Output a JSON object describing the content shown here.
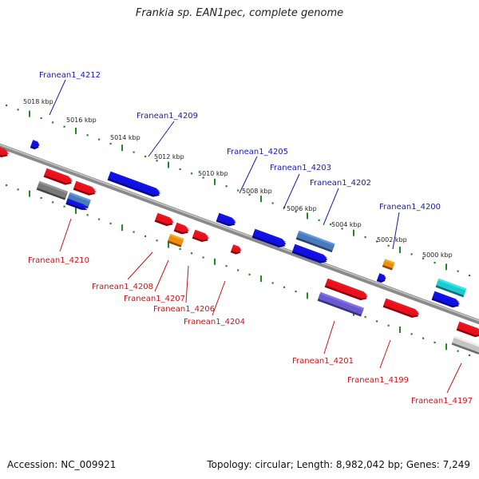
{
  "title": "Frankia sp. EAN1pec, complete genome",
  "footer": {
    "accession": "Accession: NC_009921",
    "topology": "Topology: circular; Length: 8,982,042 bp; Genes: 7,249"
  },
  "ruler": [
    "5018 kbp",
    "5016 kbp",
    "5014 kbp",
    "5012 kbp",
    "5010 kbp",
    "5008 kbp",
    "5006 kbp",
    "5004 kbp",
    "5002 kbp",
    "5000 kbp"
  ],
  "gene_labels_forward": [
    "Franean1_4212",
    "Franean1_4209",
    "Franean1_4205",
    "Franean1_4203",
    "Franean1_4202",
    "Franean1_4200"
  ],
  "gene_labels_reverse": [
    "Franean1_4210",
    "Franean1_4208",
    "Franean1_4207",
    "Franean1_4206",
    "Franean1_4204",
    "Franean1_4201",
    "Franean1_4199",
    "Franean1_4197"
  ],
  "colors": {
    "forward_label": "#1a1aa8",
    "reverse_label": "#c81414",
    "backbone": "#888888",
    "tick": "#1f8a1f",
    "blue": "#1010e0",
    "red": "#e8101a",
    "orange": "#f08a10",
    "gray": "#7a7a7a",
    "lightgray": "#c4c4c4",
    "steelblue": "#4a7ab8",
    "slateblue": "#6a5ad0",
    "cyan": "#20c8d0"
  }
}
